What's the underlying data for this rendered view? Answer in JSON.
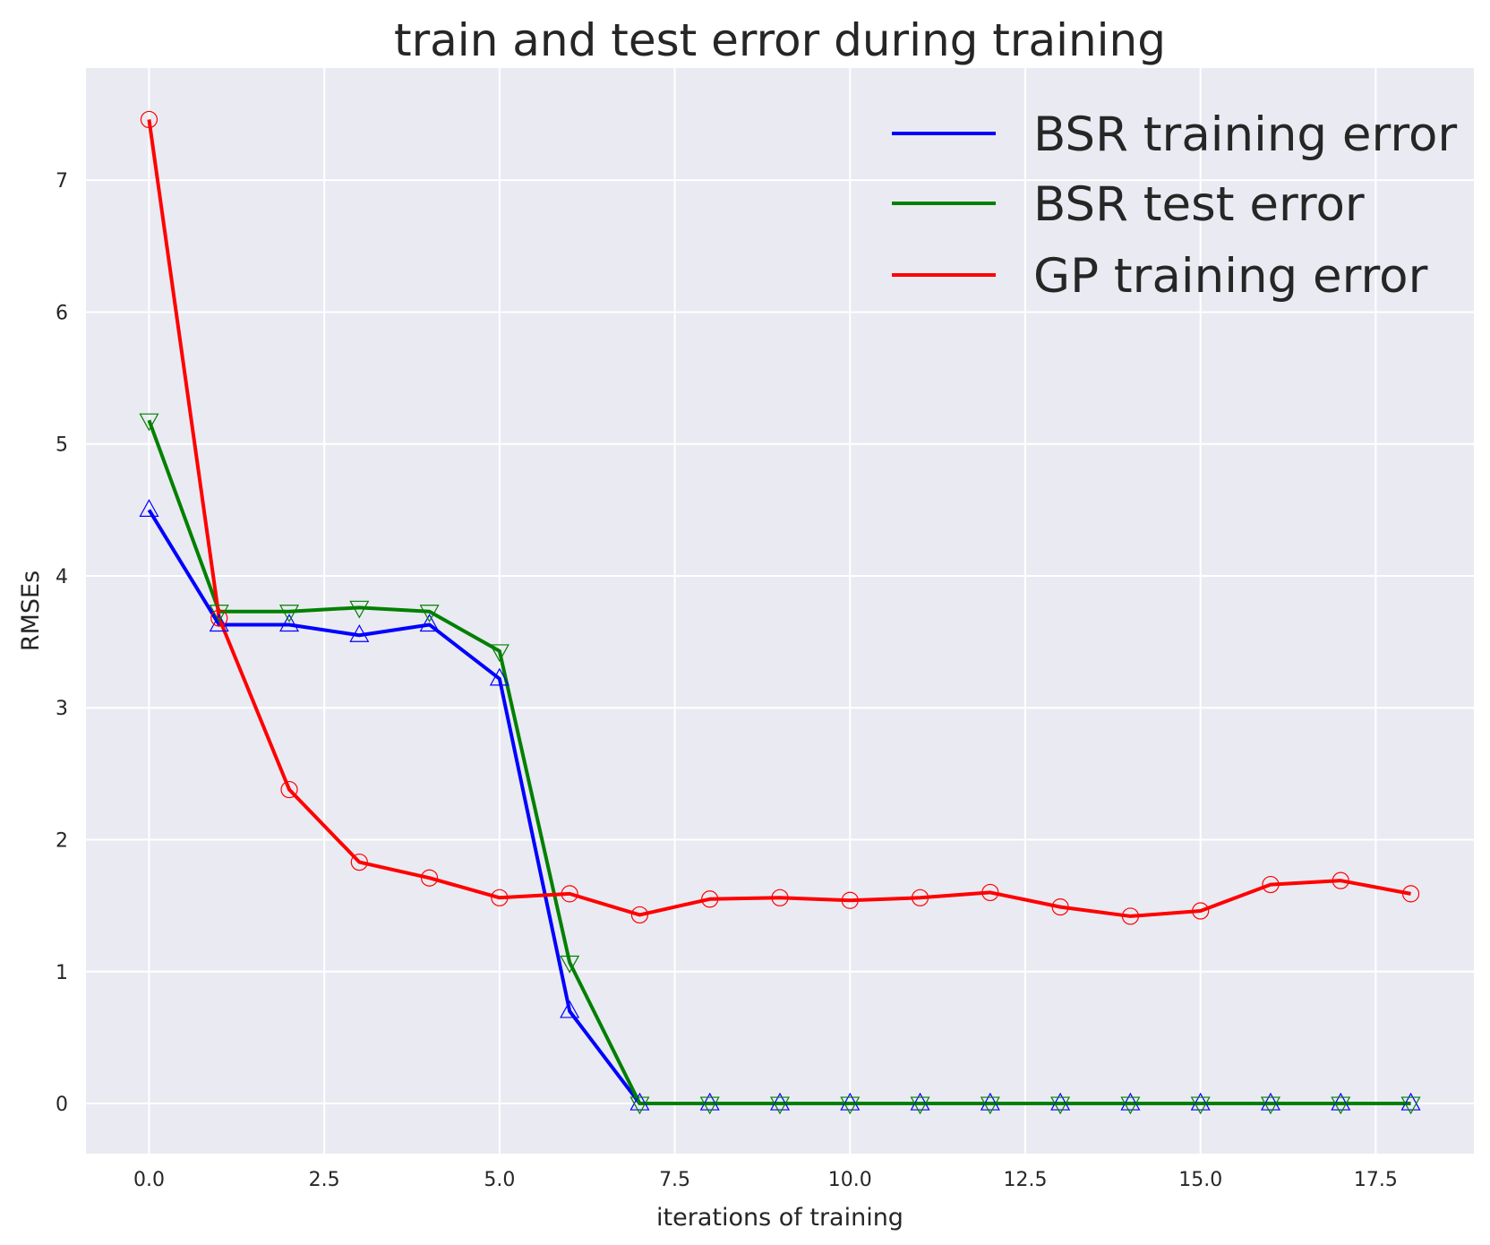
{
  "chart_data": {
    "type": "line",
    "title": "train and test error during training",
    "xlabel": "iterations of training",
    "ylabel": "RMSEs",
    "xlim": [
      -0.9,
      18.9
    ],
    "ylim": [
      -0.38,
      7.85
    ],
    "xticks": [
      0.0,
      2.5,
      5.0,
      7.5,
      10.0,
      12.5,
      15.0,
      17.5
    ],
    "xtick_labels": [
      "0.0",
      "2.5",
      "5.0",
      "7.5",
      "10.0",
      "12.5",
      "15.0",
      "17.5"
    ],
    "yticks": [
      0,
      1,
      2,
      3,
      4,
      5,
      6,
      7
    ],
    "ytick_labels": [
      "0",
      "1",
      "2",
      "3",
      "4",
      "5",
      "6",
      "7"
    ],
    "grid": true,
    "background": "#eaeaf2",
    "legend_position": "top-right",
    "x": [
      0,
      1,
      2,
      3,
      4,
      5,
      6,
      7,
      8,
      9,
      10,
      11,
      12,
      13,
      14,
      15,
      16,
      17,
      18
    ],
    "series": [
      {
        "name": "BSR training error",
        "color": "#0000ff",
        "marker": "triangle-up",
        "values": [
          4.5,
          3.63,
          3.63,
          3.55,
          3.63,
          3.22,
          0.7,
          0,
          0,
          0,
          0,
          0,
          0,
          0,
          0,
          0,
          0,
          0,
          0
        ]
      },
      {
        "name": "BSR test error",
        "color": "#008000",
        "marker": "triangle-down",
        "values": [
          5.18,
          3.73,
          3.73,
          3.76,
          3.73,
          3.43,
          1.07,
          0,
          0,
          0,
          0,
          0,
          0,
          0,
          0,
          0,
          0,
          0,
          0
        ]
      },
      {
        "name": "GP training error",
        "color": "#ff0000",
        "marker": "circle",
        "values": [
          7.46,
          3.68,
          2.38,
          1.83,
          1.71,
          1.56,
          1.59,
          1.43,
          1.55,
          1.56,
          1.54,
          1.56,
          1.6,
          1.49,
          1.42,
          1.46,
          1.66,
          1.69,
          1.59
        ]
      }
    ]
  }
}
